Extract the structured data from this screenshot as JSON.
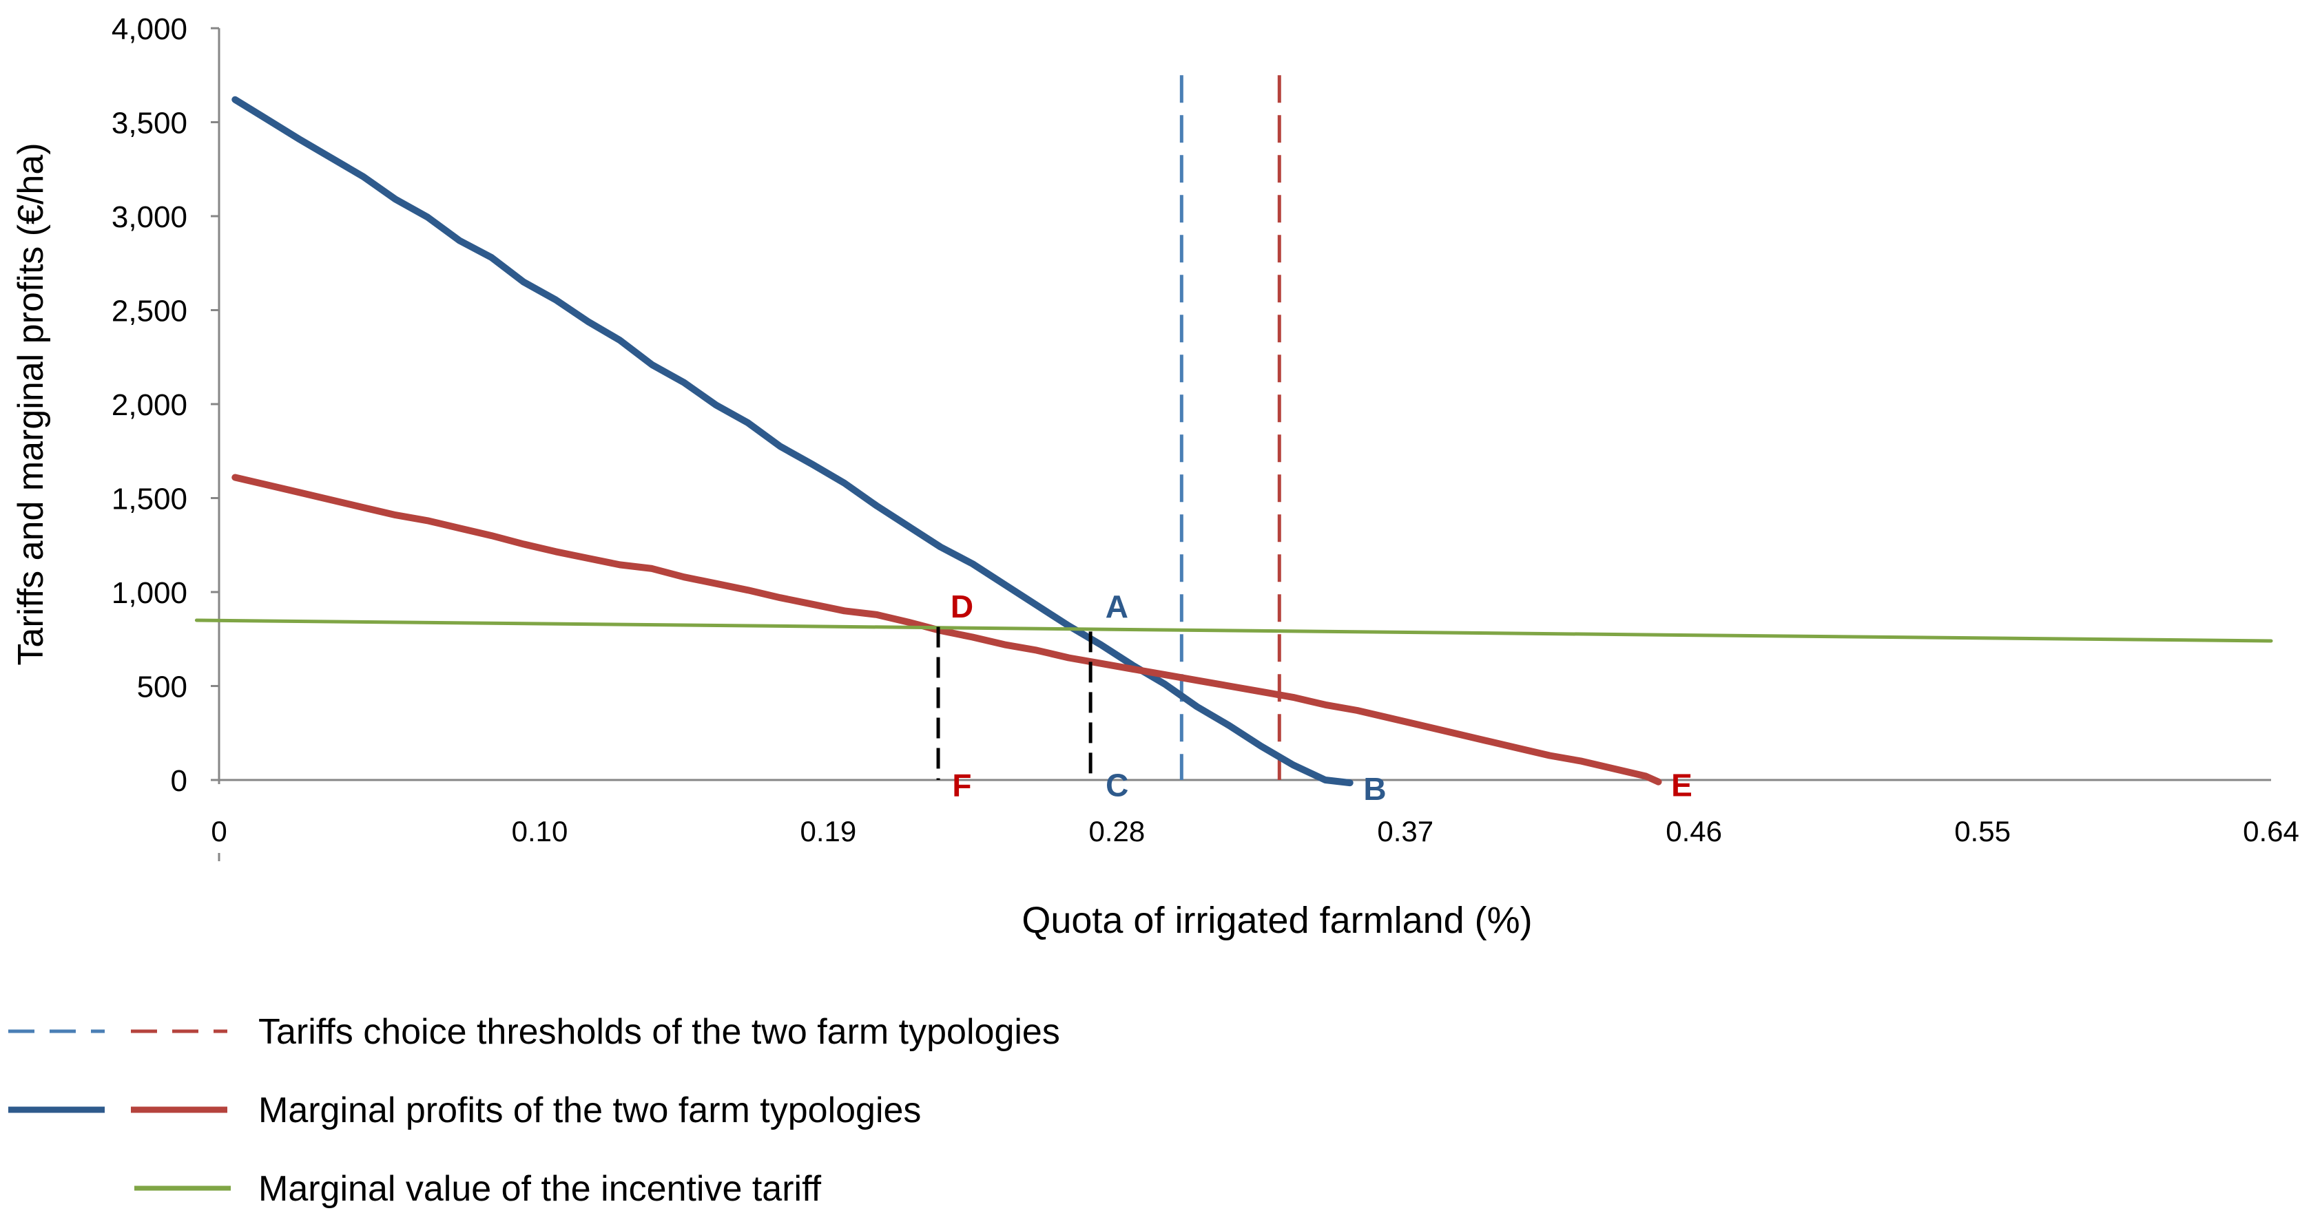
{
  "chart_data": {
    "type": "line",
    "title": "",
    "xlabel": "Quota of irrigated farmland (%)",
    "ylabel": "Tariffs and marginal profits (€/ha)",
    "xlim": [
      0,
      0.64
    ],
    "ylim": [
      0,
      4000
    ],
    "x_tick_labels": [
      {
        "x": 0.0,
        "label": "0"
      },
      {
        "x": 0.1,
        "label": "0.10"
      },
      {
        "x": 0.19,
        "label": "0.19"
      },
      {
        "x": 0.28,
        "label": "0.28"
      },
      {
        "x": 0.37,
        "label": "0.37"
      },
      {
        "x": 0.46,
        "label": "0.46"
      },
      {
        "x": 0.55,
        "label": "0.55"
      },
      {
        "x": 0.64,
        "label": "0.64"
      }
    ],
    "y_tick_labels": [
      {
        "y": 0,
        "label": "0"
      },
      {
        "y": 500,
        "label": "500"
      },
      {
        "y": 1000,
        "label": "1,000"
      },
      {
        "y": 1500,
        "label": "1,500"
      },
      {
        "y": 2000,
        "label": "2,000"
      },
      {
        "y": 2500,
        "label": "2,500"
      },
      {
        "y": 3000,
        "label": "3,000"
      },
      {
        "y": 3500,
        "label": "3,500"
      },
      {
        "y": 4000,
        "label": "4,000"
      }
    ],
    "grid": false,
    "series": [
      {
        "key": "blue_profit",
        "style": "solid",
        "color": "#2E5A8C",
        "x": [
          0.005,
          0.025,
          0.045,
          0.055,
          0.065,
          0.075,
          0.085,
          0.095,
          0.105,
          0.115,
          0.125,
          0.135,
          0.145,
          0.155,
          0.165,
          0.175,
          0.185,
          0.195,
          0.205,
          0.215,
          0.225,
          0.235,
          0.245,
          0.255,
          0.265,
          0.275,
          0.285,
          0.295,
          0.305,
          0.315,
          0.325,
          0.335,
          0.345,
          0.3527
        ],
        "y": [
          3620,
          3410,
          3210,
          3090,
          2995,
          2870,
          2780,
          2650,
          2555,
          2440,
          2340,
          2210,
          2115,
          1995,
          1900,
          1775,
          1680,
          1580,
          1460,
          1350,
          1240,
          1150,
          1040,
          930,
          820,
          720,
          610,
          510,
          390,
          290,
          180,
          80,
          0,
          -15
        ]
      },
      {
        "key": "red_profit",
        "style": "solid",
        "color": "#B5433D",
        "x": [
          0.005,
          0.025,
          0.045,
          0.055,
          0.065,
          0.075,
          0.085,
          0.095,
          0.105,
          0.115,
          0.125,
          0.135,
          0.145,
          0.155,
          0.165,
          0.175,
          0.185,
          0.195,
          0.205,
          0.215,
          0.225,
          0.235,
          0.245,
          0.255,
          0.265,
          0.275,
          0.285,
          0.295,
          0.305,
          0.315,
          0.325,
          0.335,
          0.345,
          0.355,
          0.365,
          0.375,
          0.385,
          0.395,
          0.405,
          0.415,
          0.425,
          0.435,
          0.445,
          0.4489
        ],
        "y": [
          1610,
          1530,
          1450,
          1410,
          1380,
          1340,
          1300,
          1255,
          1215,
          1180,
          1145,
          1125,
          1080,
          1045,
          1010,
          970,
          935,
          900,
          880,
          840,
          795,
          760,
          720,
          690,
          650,
          620,
          590,
          560,
          530,
          500,
          470,
          440,
          400,
          370,
          330,
          290,
          250,
          210,
          170,
          130,
          100,
          60,
          20,
          -10
        ]
      },
      {
        "key": "green_tariff",
        "style": "solid",
        "color": "#7FA545",
        "x": [
          -0.007,
          0.64
        ],
        "y": [
          850,
          740
        ]
      }
    ],
    "vertical_thresholds": [
      {
        "key": "blue_threshold",
        "x": 0.3002,
        "y_range": [
          0,
          3750
        ],
        "style": "dashed",
        "color": "#4A7FB5"
      },
      {
        "key": "red_threshold",
        "x": 0.3307,
        "y_range": [
          0,
          3750
        ],
        "style": "dashed",
        "color": "#B5433D"
      }
    ],
    "drop_lines": [
      {
        "key": "drop_F",
        "x": 0.2243,
        "y_range": [
          0,
          815
        ],
        "style": "dashed",
        "color": "#000000"
      },
      {
        "key": "drop_C",
        "x": 0.2718,
        "y_range": [
          0,
          790
        ],
        "style": "dashed",
        "color": "#000000"
      }
    ],
    "annotations": [
      {
        "label": "A",
        "x": 0.28,
        "y": 930,
        "color": "#2E5A8C"
      },
      {
        "label": "B",
        "x": 0.3605,
        "y": -40,
        "color": "#2E5A8C"
      },
      {
        "label": "C",
        "x": 0.2801,
        "y": -20,
        "color": "#2E5A8C"
      },
      {
        "label": "D",
        "x": 0.2317,
        "y": 930,
        "color": "#C00000"
      },
      {
        "label": "E",
        "x": 0.4562,
        "y": -20,
        "color": "#C00000"
      },
      {
        "label": "F",
        "x": 0.2317,
        "y": -20,
        "color": "#C00000"
      }
    ],
    "legend": {
      "placement": "bottom",
      "entries": [
        {
          "label": "Tariffs choice thresholds of the two farm typologies",
          "style": "dashed",
          "colors": [
            "#4A7FB5",
            "#B5433D"
          ]
        },
        {
          "label": "Marginal profits of the two farm typologies",
          "style": "solid",
          "colors": [
            "#2E5A8C",
            "#B5433D"
          ]
        },
        {
          "label": "Marginal value of the incentive tariff",
          "style": "solid",
          "colors": [
            "#7FA545"
          ]
        }
      ]
    }
  }
}
